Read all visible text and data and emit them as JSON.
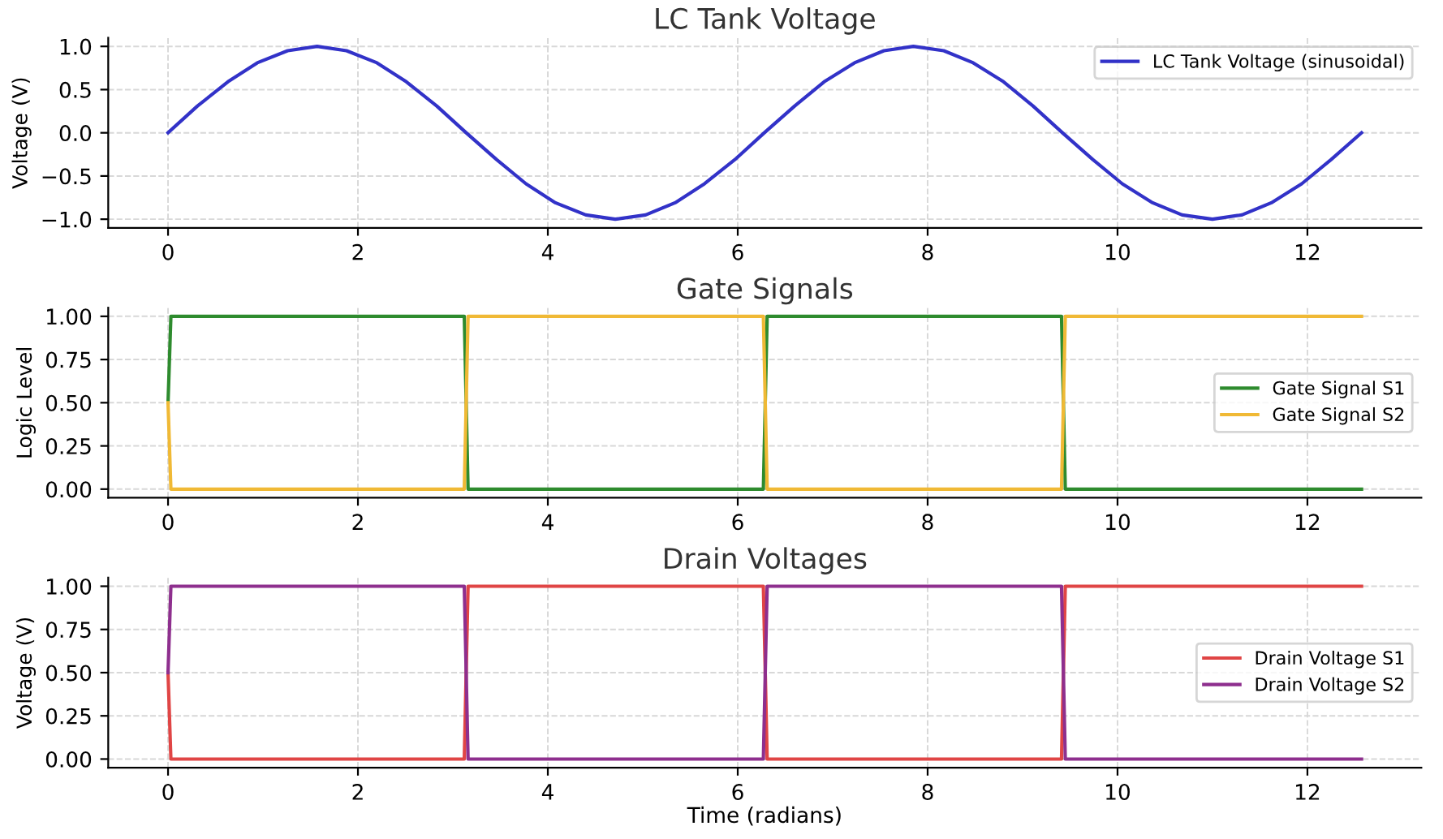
{
  "chart_data": [
    {
      "type": "line",
      "title": "LC Tank Voltage",
      "ylabel": "Voltage (V)",
      "xlim": [
        -0.63,
        13.2
      ],
      "xticks": [
        0,
        2,
        4,
        6,
        8,
        10,
        12
      ],
      "ylim": [
        -1.1,
        1.1
      ],
      "yticks": [
        {
          "value": -1.0,
          "label": "−1.0"
        },
        {
          "value": -0.5,
          "label": "−0.5"
        },
        {
          "value": 0.0,
          "label": "0.0"
        },
        {
          "value": 0.5,
          "label": "0.5"
        },
        {
          "value": 1.0,
          "label": "1.0"
        }
      ],
      "grid": true,
      "legend": "top right",
      "series": [
        {
          "name": "LC Tank Voltage (sinusoidal)",
          "color": "#3232c8",
          "x": [
            0,
            0.31,
            0.63,
            0.94,
            1.26,
            1.57,
            1.88,
            2.2,
            2.51,
            2.83,
            3.14,
            3.46,
            3.77,
            4.08,
            4.4,
            4.71,
            5.03,
            5.34,
            5.65,
            5.97,
            6.28,
            6.6,
            6.91,
            7.23,
            7.54,
            7.85,
            8.17,
            8.48,
            8.8,
            9.11,
            9.42,
            9.74,
            10.05,
            10.37,
            10.68,
            11.0,
            11.31,
            11.62,
            11.94,
            12.25,
            12.57
          ],
          "values": [
            0,
            0.31,
            0.59,
            0.81,
            0.95,
            1.0,
            0.95,
            0.81,
            0.59,
            0.31,
            0,
            -0.31,
            -0.59,
            -0.81,
            -0.95,
            -1.0,
            -0.95,
            -0.81,
            -0.59,
            -0.31,
            0,
            0.31,
            0.59,
            0.81,
            0.95,
            1.0,
            0.95,
            0.81,
            0.59,
            0.31,
            0,
            -0.31,
            -0.59,
            -0.81,
            -0.95,
            -1.0,
            -0.95,
            -0.81,
            -0.59,
            -0.31,
            0
          ]
        }
      ]
    },
    {
      "type": "line",
      "title": "Gate Signals",
      "ylabel": "Logic Level",
      "xlim": [
        -0.63,
        13.2
      ],
      "xticks": [
        0,
        2,
        4,
        6,
        8,
        10,
        12
      ],
      "ylim": [
        -0.05,
        1.05
      ],
      "yticks": [
        {
          "value": 0,
          "label": "0.00"
        },
        {
          "value": 0.25,
          "label": "0.25"
        },
        {
          "value": 0.5,
          "label": "0.50"
        },
        {
          "value": 0.75,
          "label": "0.75"
        },
        {
          "value": 1.0,
          "label": "1.00"
        }
      ],
      "grid": true,
      "legend": "right",
      "series": [
        {
          "name": "Gate Signal S1",
          "color": "#2e8b2e",
          "x": [
            0,
            0.03,
            3.12,
            3.16,
            6.27,
            6.31,
            9.41,
            9.45,
            12.57
          ],
          "values": [
            0.5,
            1,
            1,
            0,
            0,
            1,
            1,
            0,
            0
          ]
        },
        {
          "name": "Gate Signal S2",
          "color": "#f0b935",
          "x": [
            0,
            0.03,
            3.12,
            3.16,
            6.27,
            6.31,
            9.41,
            9.45,
            12.57
          ],
          "values": [
            0.5,
            0,
            0,
            1,
            1,
            0,
            0,
            1,
            1
          ]
        }
      ]
    },
    {
      "type": "line",
      "title": "Drain Voltages",
      "xlabel": "Time (radians)",
      "ylabel": "Voltage (V)",
      "xlim": [
        -0.63,
        13.2
      ],
      "xticks": [
        0,
        2,
        4,
        6,
        8,
        10,
        12
      ],
      "ylim": [
        -0.05,
        1.05
      ],
      "yticks": [
        {
          "value": 0,
          "label": "0.00"
        },
        {
          "value": 0.25,
          "label": "0.25"
        },
        {
          "value": 0.5,
          "label": "0.50"
        },
        {
          "value": 0.75,
          "label": "0.75"
        },
        {
          "value": 1.0,
          "label": "1.00"
        }
      ],
      "grid": true,
      "legend": "right",
      "series": [
        {
          "name": "Drain Voltage S1",
          "color": "#e04545",
          "x": [
            0,
            0.03,
            3.12,
            3.16,
            6.27,
            6.31,
            9.41,
            9.45,
            12.57
          ],
          "values": [
            0.5,
            0,
            0,
            1,
            1,
            0,
            0,
            1,
            1
          ]
        },
        {
          "name": "Drain Voltage S2",
          "color": "#8e2f8e",
          "x": [
            0,
            0.03,
            3.12,
            3.16,
            6.27,
            6.31,
            9.41,
            9.45,
            12.57
          ],
          "values": [
            0.5,
            1,
            1,
            0,
            0,
            1,
            1,
            0,
            0
          ]
        }
      ]
    }
  ]
}
